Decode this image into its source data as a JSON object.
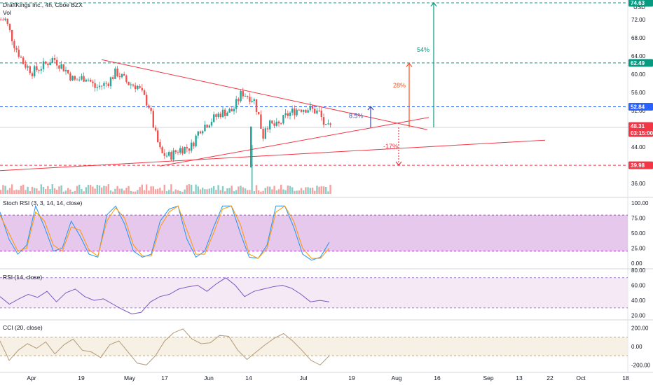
{
  "symbol_title": "DraftKings Inc., 4h, Cboe BZX",
  "volume_label": "Vol",
  "currency": "USD",
  "colors": {
    "up": "#26a69a",
    "down": "#ef5350",
    "level_green": "#089981",
    "level_blue": "#2962ff",
    "level_red": "#f23645",
    "stoch_k": "#2196f3",
    "stoch_d": "#ff9800",
    "stoch_band": "#e1bee7",
    "rsi_line": "#7e57c2",
    "rsi_band": "#f3e5f5",
    "cci_line": "#b39b7a",
    "cci_band": "#f5ede1",
    "trend": "#f23645"
  },
  "price_axis": {
    "ticks": [
      "72.00",
      "68.00",
      "64.00",
      "60.00",
      "56.00",
      "52.00",
      "48.00",
      "44.00",
      "36.00"
    ],
    "badges": [
      {
        "value": "74.63",
        "color": "#089981"
      },
      {
        "value": "62.49",
        "color": "#089981"
      },
      {
        "value": "52.84",
        "color": "#2962ff"
      },
      {
        "value": "48.31",
        "color": "#f23645"
      },
      {
        "value": "03:15:00",
        "color": "#f23645"
      },
      {
        "value": "39.98",
        "color": "#f23645"
      }
    ]
  },
  "annotations": {
    "pct_small": "8.5%",
    "pct_mid": "28%",
    "pct_big": "54%",
    "pct_down": "-17%"
  },
  "x_axis": {
    "labels": [
      "Apr",
      "19",
      "May",
      "17",
      "Jun",
      "14",
      "Jul",
      "19",
      "Aug",
      "16",
      "Sep",
      "13",
      "22",
      "Oct",
      "18"
    ]
  },
  "indicators": {
    "stoch": {
      "title": "Stoch RSI (3, 3, 14, 14, close)",
      "ticks": [
        "100.00",
        "75.00",
        "50.00",
        "25.00",
        "0.00"
      ]
    },
    "rsi": {
      "title": "RSI (14, close)",
      "ticks": [
        "80.00",
        "60.00",
        "40.00",
        "20.00"
      ]
    },
    "cci": {
      "title": "CCI (20, close)",
      "ticks": [
        "200.00",
        "0.00",
        "-200.00"
      ]
    }
  },
  "chart_data": [
    {
      "type": "candlestick",
      "title": "DraftKings Inc., 4h, Cboe BZX",
      "ylabel": "USD",
      "ylim": [
        34,
        74.6
      ],
      "price_levels": [
        74.63,
        62.49,
        52.84,
        48.31,
        39.98
      ],
      "x_ticks": [
        "Apr",
        "19",
        "May",
        "17",
        "Jun",
        "14",
        "Jul",
        "19",
        "Aug",
        "16",
        "Sep",
        "13",
        "22",
        "Oct",
        "18"
      ],
      "close_path": [
        {
          "x": "Mar 23",
          "close": 72.0
        },
        {
          "x": "Mar 26",
          "close": 66.5
        },
        {
          "x": "Mar 29",
          "close": 62.5
        },
        {
          "x": "Apr 1",
          "close": 60.5
        },
        {
          "x": "Apr 5",
          "close": 62.0
        },
        {
          "x": "Apr 8",
          "close": 63.5
        },
        {
          "x": "Apr 12",
          "close": 61.0
        },
        {
          "x": "Apr 15",
          "close": 58.5
        },
        {
          "x": "Apr 19",
          "close": 59.5
        },
        {
          "x": "Apr 22",
          "close": 57.0
        },
        {
          "x": "Apr 26",
          "close": 58.0
        },
        {
          "x": "Apr 29",
          "close": 60.5
        },
        {
          "x": "May 3",
          "close": 58.0
        },
        {
          "x": "May 6",
          "close": 57.5
        },
        {
          "x": "May 10",
          "close": 53.0
        },
        {
          "x": "May 12",
          "close": 47.0
        },
        {
          "x": "May 14",
          "close": 42.5
        },
        {
          "x": "May 17",
          "close": 42.0
        },
        {
          "x": "May 20",
          "close": 43.5
        },
        {
          "x": "May 24",
          "close": 44.0
        },
        {
          "x": "May 27",
          "close": 48.0
        },
        {
          "x": "May 31",
          "close": 50.0
        },
        {
          "x": "Jun 3",
          "close": 51.5
        },
        {
          "x": "Jun 7",
          "close": 52.0
        },
        {
          "x": "Jun 10",
          "close": 56.0
        },
        {
          "x": "Jun 14",
          "close": 54.5
        },
        {
          "x": "Jun 16",
          "close": 50.0
        },
        {
          "x": "Jun 17",
          "close": 46.0
        },
        {
          "x": "Jun 18",
          "close": 49.0
        },
        {
          "x": "Jun 22",
          "close": 48.5
        },
        {
          "x": "Jun 25",
          "close": 51.0
        },
        {
          "x": "Jun 29",
          "close": 52.5
        },
        {
          "x": "Jul 2",
          "close": 52.5
        },
        {
          "x": "Jul 6",
          "close": 51.5
        },
        {
          "x": "Jul 8",
          "close": 48.0
        },
        {
          "x": "Jul 10",
          "close": 48.3
        }
      ]
    },
    {
      "type": "line",
      "title": "Stoch RSI (3, 3, 14, 14, close)",
      "ylim": [
        0,
        100
      ],
      "bands": [
        20,
        80
      ],
      "series": [
        {
          "values": [
            85,
            40,
            15,
            30,
            95,
            60,
            20,
            25,
            70,
            45,
            15,
            10,
            80,
            95,
            65,
            20,
            10,
            15,
            70,
            90,
            95,
            40,
            10,
            20,
            60,
            95,
            95,
            50,
            10,
            8,
            30,
            95,
            95,
            60,
            15,
            5,
            10,
            35
          ]
        },
        {
          "values": [
            80,
            50,
            20,
            25,
            85,
            70,
            30,
            20,
            60,
            55,
            22,
            12,
            70,
            92,
            75,
            30,
            12,
            12,
            60,
            85,
            95,
            55,
            15,
            15,
            50,
            90,
            95,
            65,
            15,
            8,
            25,
            85,
            95,
            70,
            25,
            8,
            8,
            25
          ]
        }
      ]
    },
    {
      "type": "line",
      "title": "RSI (14, close)",
      "ylim": [
        15,
        80
      ],
      "bands": [
        30,
        70
      ],
      "series": [
        {
          "values": [
            45,
            35,
            42,
            48,
            44,
            52,
            38,
            50,
            55,
            45,
            40,
            42,
            35,
            28,
            22,
            24,
            38,
            45,
            48,
            55,
            58,
            60,
            52,
            62,
            70,
            60,
            45,
            52,
            55,
            58,
            60,
            56,
            48,
            38,
            40,
            38
          ]
        }
      ]
    },
    {
      "type": "line",
      "title": "CCI (20, close)",
      "ylim": [
        -250,
        250
      ],
      "bands": [
        -100,
        100
      ],
      "series": [
        {
          "values": [
            60,
            -150,
            -40,
            30,
            -20,
            50,
            -80,
            20,
            80,
            -40,
            -60,
            -120,
            20,
            60,
            -60,
            -180,
            -200,
            -100,
            60,
            150,
            190,
            80,
            30,
            40,
            120,
            110,
            -40,
            -140,
            -60,
            20,
            90,
            140,
            60,
            -40,
            -150,
            -200,
            -100
          ]
        }
      ]
    }
  ]
}
